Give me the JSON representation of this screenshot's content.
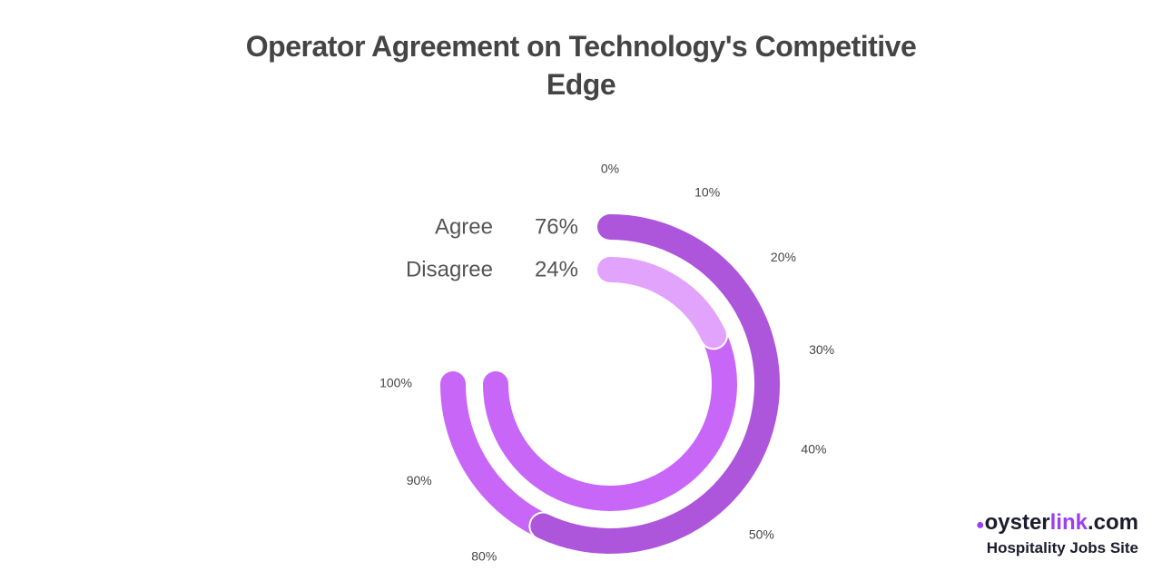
{
  "chart_data": {
    "type": "radial_bar",
    "title": "Operator Agreement on Technology's Competitive Edge",
    "series": [
      {
        "name": "Agree",
        "color": "#ad55db",
        "values": [
          76
        ],
        "value_labels": [
          "76%"
        ]
      },
      {
        "name": "Disagree",
        "color": "#e1a3fb",
        "values": [
          24
        ],
        "value_labels": [
          "24%"
        ]
      }
    ],
    "track_color": "#c866f7",
    "xlim": [
      0,
      100
    ],
    "xticks": [
      {
        "value": 0,
        "label": "0%"
      },
      {
        "value": 10,
        "label": "10%"
      },
      {
        "value": 20,
        "label": "20%"
      },
      {
        "value": 30,
        "label": "30%"
      },
      {
        "value": 40,
        "label": "40%"
      },
      {
        "value": 50,
        "label": "50%"
      },
      {
        "value": 80,
        "label": "80%"
      },
      {
        "value": 90,
        "label": "90%"
      },
      {
        "value": 100,
        "label": "100%"
      }
    ]
  },
  "logo": {
    "name_start": "oyster",
    "name_accent": "link",
    "name_end": ".com",
    "tagline": "Hospitality Jobs Site"
  }
}
